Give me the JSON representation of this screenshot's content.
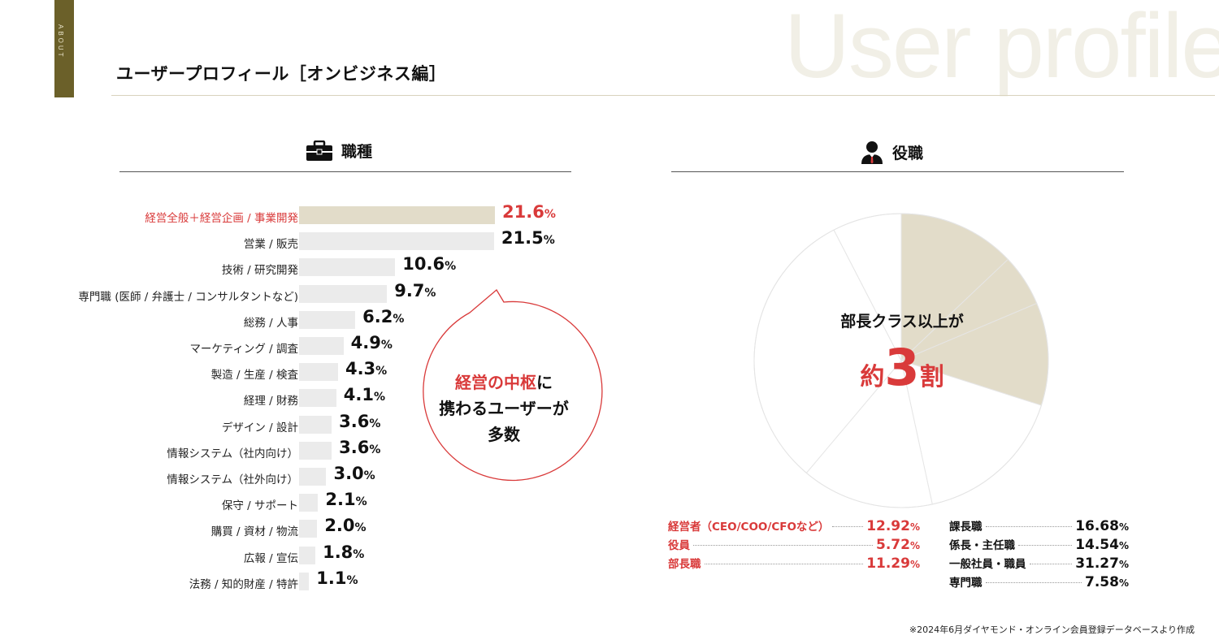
{
  "header": {
    "about_tab": "ABOUT",
    "watermark": "User profile",
    "title": "ユーザープロフィール［オンビジネス編］"
  },
  "sections": {
    "job_type": {
      "title": "職種",
      "icon": "briefcase-icon"
    },
    "position": {
      "title": "役職",
      "icon": "businessman-icon"
    }
  },
  "chart_data": [
    {
      "type": "bar",
      "orientation": "horizontal",
      "title": "職種",
      "unit": "%",
      "highlight_color": "#d93a3a",
      "categories": [
        "経営全般＋経営企画 / 事業開発",
        "営業 / 販売",
        "技術 / 研究開発",
        "専門職 (医師 / 弁護士 / コンサルタントなど)",
        "総務 / 人事",
        "マーケティング / 調査",
        "製造 / 生産 / 検査",
        "経理 / 財務",
        "デザイン / 設計",
        "情報システム（社内向け）",
        "情報システム（社外向け）",
        "保守 / サポート",
        "購買 / 資材 / 物流",
        "広報 / 宣伝",
        "法務 / 知的財産 / 特許"
      ],
      "values": [
        21.6,
        21.5,
        10.6,
        9.7,
        6.2,
        4.9,
        4.3,
        4.1,
        3.6,
        3.6,
        3.0,
        2.1,
        2.0,
        1.8,
        1.1
      ],
      "highlighted_index": 0
    },
    {
      "type": "pie",
      "title": "役職",
      "unit": "%",
      "slices": [
        {
          "label": "経営者（CEO/COO/CFOなど）",
          "value": 12.92,
          "highlighted": true
        },
        {
          "label": "役員",
          "value": 5.72,
          "highlighted": true
        },
        {
          "label": "部長職",
          "value": 11.29,
          "highlighted": true
        },
        {
          "label": "課長職",
          "value": 16.68,
          "highlighted": false
        },
        {
          "label": "係長・主任職",
          "value": 14.54,
          "highlighted": false
        },
        {
          "label": "一般社員・職員",
          "value": 31.27,
          "highlighted": false
        },
        {
          "label": "専門職",
          "value": 7.58,
          "highlighted": false
        }
      ],
      "highlight_fill": "#e2dcc9"
    }
  ],
  "callout": {
    "line1_red": "経営の中枢",
    "line1_rest": "に",
    "line2": "携わるユーザーが",
    "line3": "多数"
  },
  "pie_caption": {
    "line1": "部長クラス以上が",
    "prefix": "約",
    "number": "3",
    "suffix": "割"
  },
  "footnote": "※2024年6月ダイヤモンド・オンライン会員登録データベースより作成"
}
